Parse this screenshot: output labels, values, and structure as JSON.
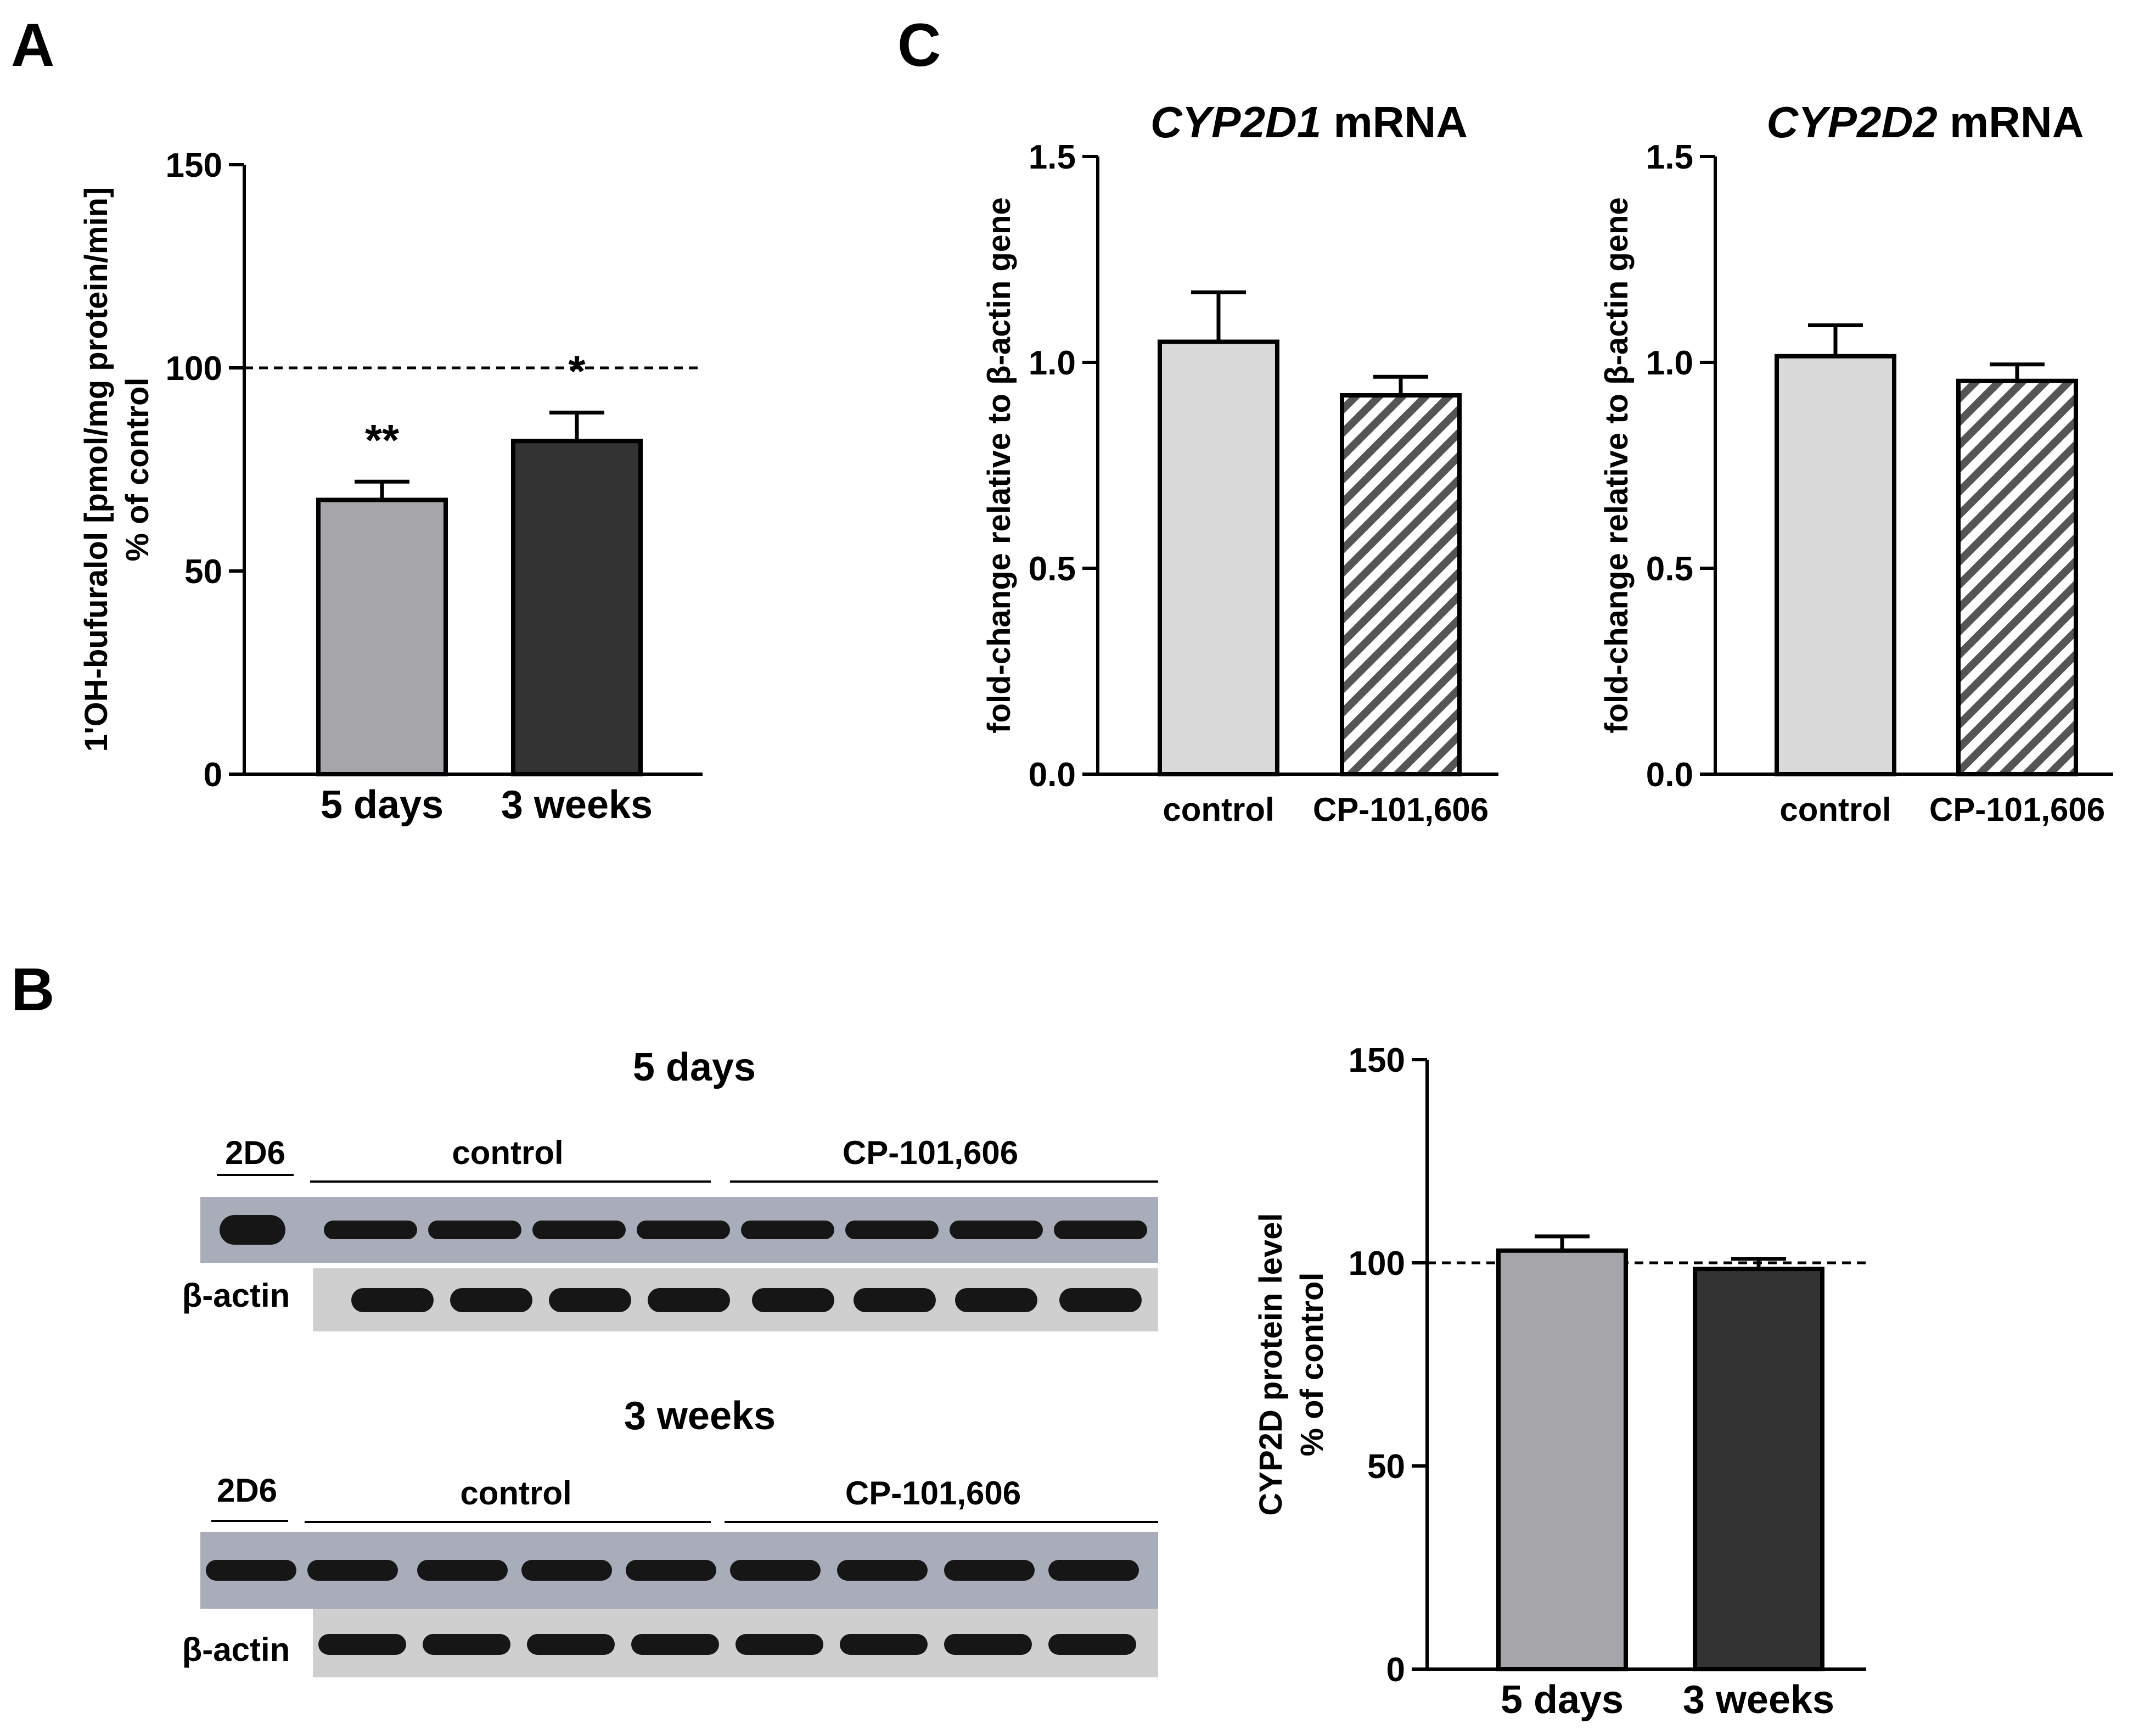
{
  "panels": {
    "a": "A",
    "b": "B",
    "c": "C"
  },
  "colors": {
    "gray_bar": "#a6a6aa",
    "dark_bar": "#333333",
    "light_bar": "#d9d9d9",
    "hatch": "#555555",
    "blot_bg": "#a9adb9",
    "blot_bg_light": "#cfcfcf"
  },
  "chart_data": [
    {
      "id": "A",
      "type": "bar",
      "ylabel_line1": "1'OH-bufuralol [pmol/mg protein/min]",
      "ylabel_line2": "% of control",
      "ylim": [
        0,
        150
      ],
      "yticks": [
        "0",
        "50",
        "100",
        "150"
      ],
      "yticks_values": [
        0,
        50,
        100,
        150
      ],
      "categories": [
        "5 days",
        "3 weeks"
      ],
      "values": [
        67.5,
        82
      ],
      "errors": [
        4.5,
        7
      ],
      "significance": [
        "**",
        "*"
      ],
      "reference_line": 100,
      "bar_colors": [
        "#a6a6aa",
        "#333333"
      ]
    },
    {
      "id": "C1",
      "type": "bar",
      "title_italic": "CYP2D1",
      "title_rest": " mRNA",
      "ylabel": "fold-change relative to β-actin gene",
      "ylim": [
        0,
        1.5
      ],
      "yticks": [
        "0.0",
        "0.5",
        "1.0",
        "1.5"
      ],
      "yticks_values": [
        0,
        0.5,
        1.0,
        1.5
      ],
      "categories": [
        "control",
        "CP-101,606"
      ],
      "values": [
        1.05,
        0.92
      ],
      "errors": [
        0.12,
        0.045
      ],
      "bar_styles": [
        "solid",
        "hatched"
      ]
    },
    {
      "id": "C2",
      "type": "bar",
      "title_italic": "CYP2D2",
      "title_rest": " mRNA",
      "ylabel": "fold-change relative to β-actin gene",
      "ylim": [
        0,
        1.5
      ],
      "yticks": [
        "0.0",
        "0.5",
        "1.0",
        "1.5"
      ],
      "yticks_values": [
        0,
        0.5,
        1.0,
        1.5
      ],
      "categories": [
        "control",
        "CP-101,606"
      ],
      "values": [
        1.015,
        0.955
      ],
      "errors": [
        0.075,
        0.04
      ],
      "bar_styles": [
        "solid",
        "hatched"
      ]
    },
    {
      "id": "B-chart",
      "type": "bar",
      "ylabel_line1": "CYP2D protein level",
      "ylabel_line2": "% of control",
      "ylim": [
        0,
        150
      ],
      "yticks": [
        "0",
        "50",
        "100",
        "150"
      ],
      "yticks_values": [
        0,
        50,
        100,
        150
      ],
      "categories": [
        "5 days",
        "3 weeks"
      ],
      "values": [
        103,
        98.5
      ],
      "errors": [
        3.5,
        2.5
      ],
      "reference_line": 100,
      "bar_colors": [
        "#a6a6aa",
        "#333333"
      ]
    }
  ],
  "blots": [
    {
      "title": "5 days",
      "std_label": "2D6",
      "group1": "control",
      "group2": "CP-101,606",
      "actin_label": "β-actin"
    },
    {
      "title": "3 weeks",
      "std_label": "2D6",
      "group1": "control",
      "group2": "CP-101,606",
      "actin_label": "β-actin"
    }
  ]
}
